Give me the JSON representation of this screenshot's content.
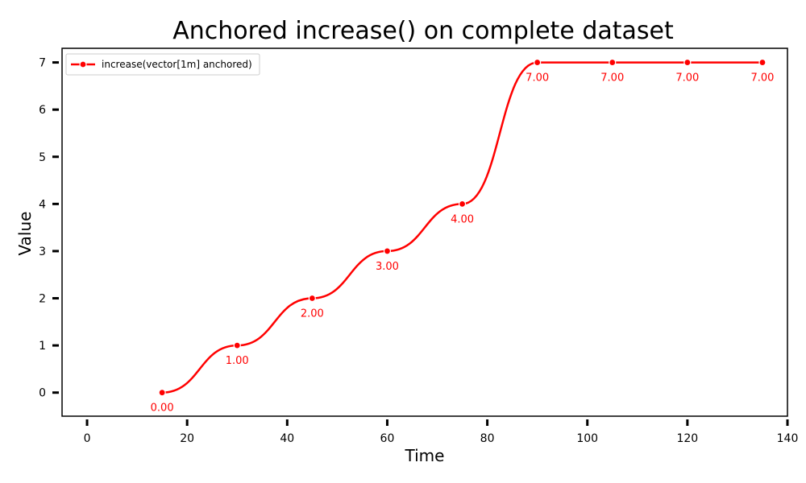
{
  "chart_data": {
    "type": "line",
    "title": "Anchored increase() on complete dataset",
    "xlabel": "Time",
    "ylabel": "Value",
    "xlim": [
      -5,
      140
    ],
    "ylim": [
      -0.5,
      7.3
    ],
    "xticks": [
      0,
      20,
      40,
      60,
      80,
      100,
      120,
      140
    ],
    "yticks": [
      0,
      1,
      2,
      3,
      4,
      5,
      6,
      7
    ],
    "grid": false,
    "legend_position": "top-left",
    "series": [
      {
        "name": "increase(vector[1m] anchored)",
        "color": "#ff0000",
        "x": [
          15,
          30,
          45,
          60,
          75,
          90,
          105,
          120,
          135
        ],
        "y": [
          0,
          1,
          2,
          3,
          4,
          7,
          7,
          7,
          7
        ],
        "labels": [
          "0.00",
          "1.00",
          "2.00",
          "3.00",
          "4.00",
          "7.00",
          "7.00",
          "7.00",
          "7.00"
        ]
      }
    ]
  }
}
